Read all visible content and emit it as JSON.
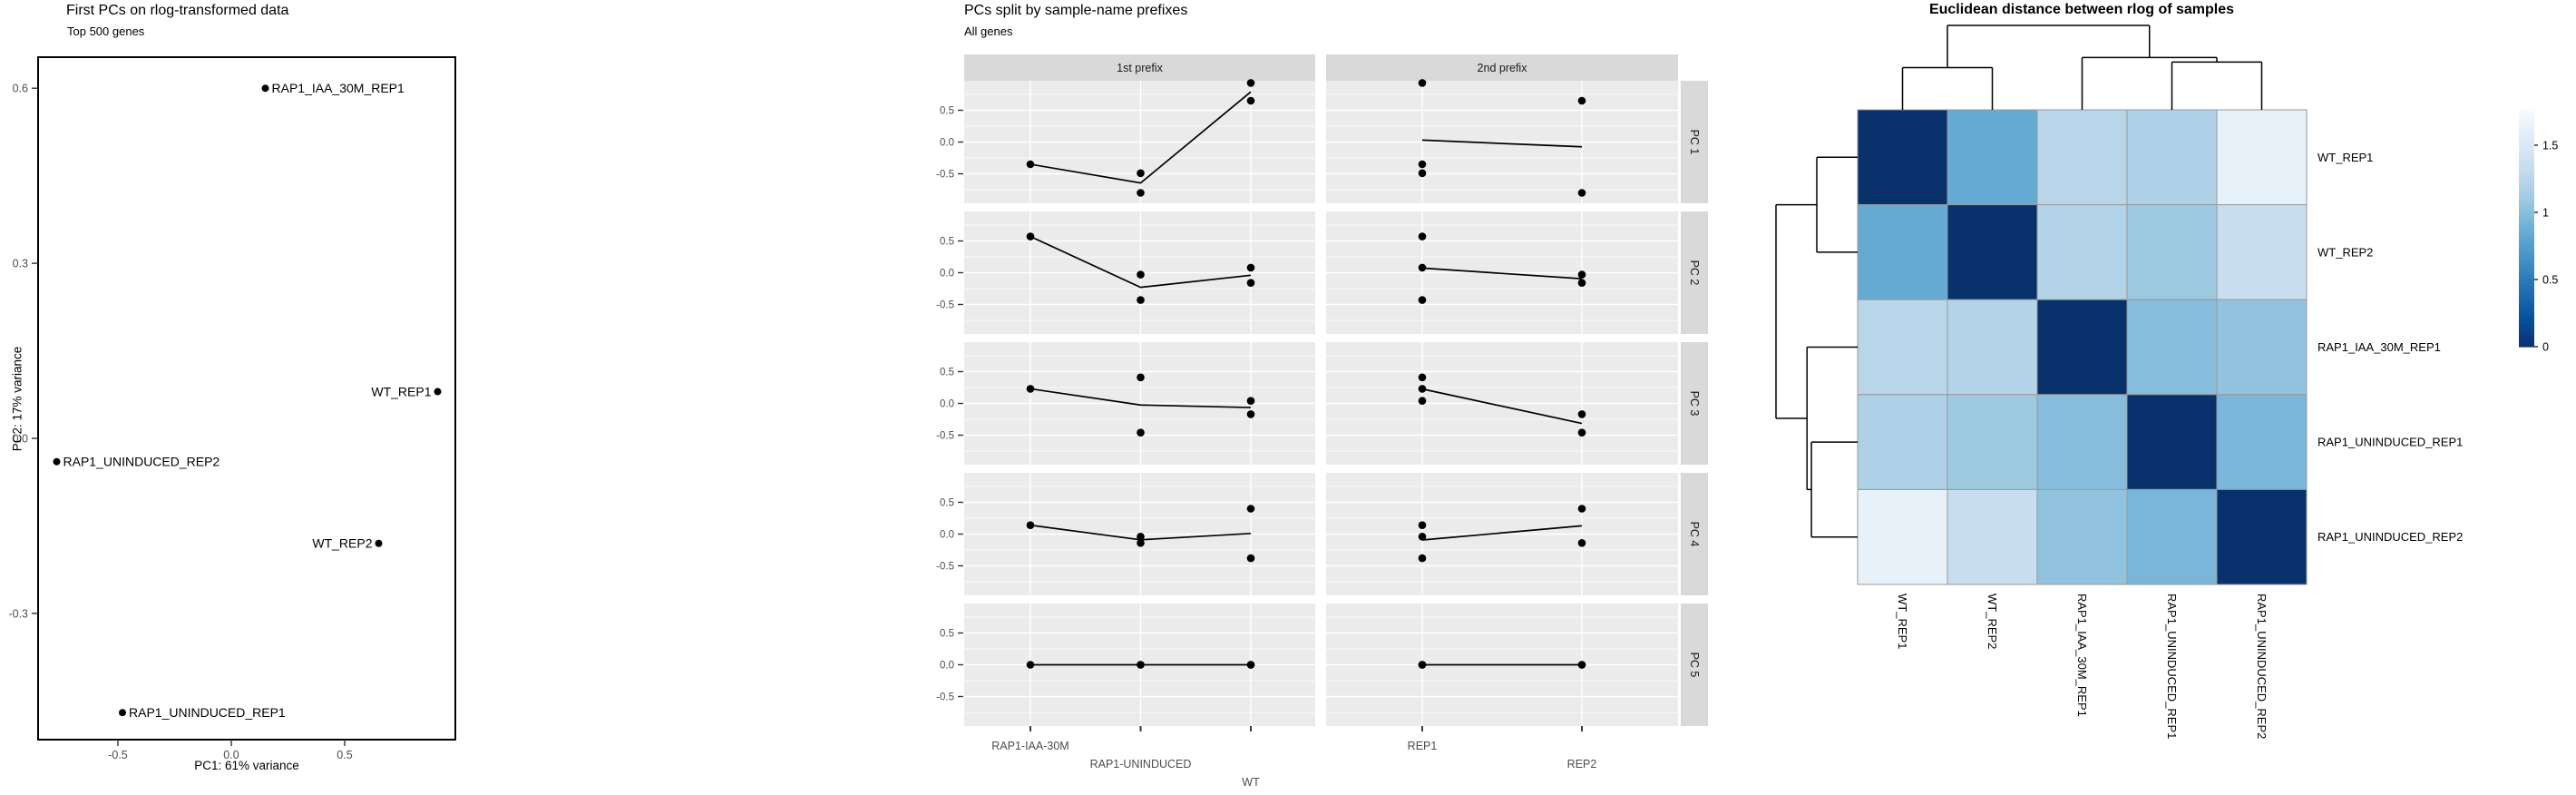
{
  "chart_data": [
    {
      "id": "pca_scatter",
      "type": "scatter",
      "title": "First PCs on rlog-transformed data",
      "subtitle": "Top 500 genes",
      "xlabel": "PC1: 61% variance",
      "ylabel": "PC2: 17% variance",
      "xlim": [
        -0.85,
        0.99
      ],
      "ylim": [
        -0.52,
        0.65
      ],
      "grid": false,
      "xticks": [
        {
          "label": "-0.5",
          "value": -0.5
        },
        {
          "label": "0.0",
          "value": 0.0
        },
        {
          "label": "0.5",
          "value": 0.5
        }
      ],
      "yticks": [
        {
          "label": "0.6",
          "value": 0.6
        },
        {
          "label": "0.3",
          "value": 0.3
        },
        {
          "label": "0.0",
          "value": 0.0
        },
        {
          "label": "-0.3",
          "value": -0.3
        }
      ],
      "points": [
        {
          "label": "RAP1_IAA_30M_REP1",
          "x": 0.15,
          "y": 0.6,
          "label_side": "right"
        },
        {
          "label": "WT_REP1",
          "x": 0.91,
          "y": 0.08,
          "label_side": "left"
        },
        {
          "label": "RAP1_UNINDUCED_REP2",
          "x": -0.77,
          "y": -0.04,
          "label_side": "right"
        },
        {
          "label": "WT_REP2",
          "x": 0.65,
          "y": -0.18,
          "label_side": "left"
        },
        {
          "label": "RAP1_UNINDUCED_REP1",
          "x": -0.48,
          "y": -0.47,
          "label_side": "right"
        }
      ]
    },
    {
      "id": "pc_facets",
      "type": "line",
      "title": "PCs split by sample-name prefixes",
      "subtitle": "All genes",
      "col_strips": [
        "1st prefix",
        "2nd prefix"
      ],
      "row_strips": [
        "PC 1",
        "PC 2",
        "PC 3",
        "PC 4",
        "PC 5"
      ],
      "yticks": [
        {
          "label": "0.5",
          "value": 0.5
        },
        {
          "label": "0.0",
          "value": 0.0
        },
        {
          "label": "-0.5",
          "value": -0.5
        }
      ],
      "ylim": [
        -0.96,
        0.96
      ],
      "prefix1_categories": [
        "RAP1-IAA-30M",
        "RAP1-UNINDUCED",
        "WT"
      ],
      "prefix2_categories": [
        "REP1",
        "REP2"
      ],
      "samples": [
        {
          "name": "RAP1_IAA_30M_REP1",
          "prefix1": "RAP1-IAA-30M",
          "prefix2": "REP1",
          "pcs": [
            -0.35,
            0.57,
            0.23,
            0.14,
            0.0
          ]
        },
        {
          "name": "RAP1_UNINDUCED_REP1",
          "prefix1": "RAP1-UNINDUCED",
          "prefix2": "REP1",
          "pcs": [
            -0.49,
            -0.43,
            0.41,
            -0.04,
            0.0
          ]
        },
        {
          "name": "RAP1_UNINDUCED_REP2",
          "prefix1": "RAP1-UNINDUCED",
          "prefix2": "REP2",
          "pcs": [
            -0.8,
            -0.03,
            -0.46,
            -0.14,
            0.0
          ]
        },
        {
          "name": "WT_REP1",
          "prefix1": "WT",
          "prefix2": "REP1",
          "pcs": [
            0.93,
            0.08,
            0.04,
            -0.38,
            0.0
          ]
        },
        {
          "name": "WT_REP2",
          "prefix1": "WT",
          "prefix2": "REP2",
          "pcs": [
            0.65,
            -0.16,
            -0.17,
            0.4,
            0.0
          ]
        }
      ],
      "line_rule": "line connects per-category means"
    },
    {
      "id": "distance_heatmap",
      "type": "heatmap",
      "title": "Euclidean distance between rlog of samples",
      "labels": [
        "WT_REP1",
        "WT_REP2",
        "RAP1_IAA_30M_REP1",
        "RAP1_UNINDUCED_REP1",
        "RAP1_UNINDUCED_REP2"
      ],
      "matrix": [
        [
          0.0,
          0.85,
          1.25,
          1.2,
          1.63
        ],
        [
          0.85,
          0.0,
          1.22,
          1.1,
          1.35
        ],
        [
          1.25,
          1.22,
          0.0,
          1.0,
          1.05
        ],
        [
          1.2,
          1.1,
          1.0,
          0.0,
          0.95
        ],
        [
          1.63,
          1.35,
          1.05,
          0.95,
          0.0
        ]
      ],
      "scale_max": 1.77,
      "legend_ticks": [
        {
          "label": "1.5",
          "value": 1.5
        },
        {
          "label": "1",
          "value": 1.0
        },
        {
          "label": "0.5",
          "value": 0.5
        },
        {
          "label": "0",
          "value": 0.0
        }
      ],
      "palette_low_to_high": [
        "#08306B",
        "#08519C",
        "#2171B5",
        "#4292C6",
        "#6BAED6",
        "#9ECAE1",
        "#C6DBEF",
        "#DEEBF7",
        "#F7FBFF"
      ],
      "dendrogram_joins": [
        {
          "a": 0,
          "b": 1,
          "h": 0.5
        },
        {
          "a": 3,
          "b": 4,
          "h": 0.566
        },
        {
          "a": 2,
          "b": 6,
          "h": 0.62
        },
        {
          "a": 5,
          "b": 7,
          "h": 1.0
        }
      ],
      "colors": {
        "cell_border": "#999999",
        "dendro_line": "#000000"
      }
    }
  ],
  "theme": {
    "panel_fill": "#EBEBEB",
    "strip_fill": "#D9D9D9",
    "grid_color": "#FFFFFF",
    "tick_text_color": "#4D4D4D",
    "strip_text_color": "#1A1A1A",
    "point_color": "#000000"
  }
}
